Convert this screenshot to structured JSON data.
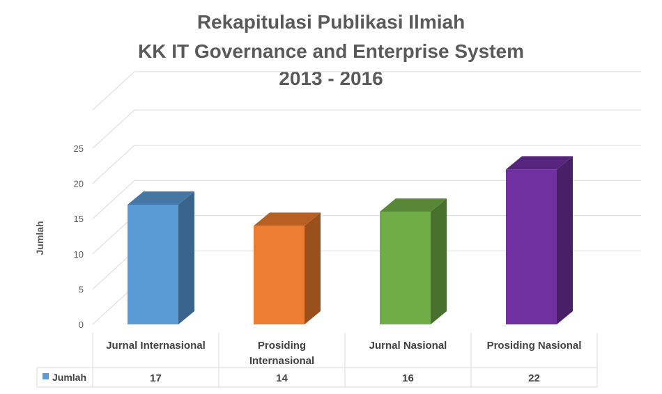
{
  "chart_data": {
    "type": "bar",
    "title_lines": [
      "Rekapitulasi Publikasi Ilmiah",
      "KK IT Governance and Enterprise System",
      "2013 - 2016"
    ],
    "ylabel": "Jumlah",
    "xlabel": "",
    "ylim": [
      0,
      25
    ],
    "yticks": [
      0,
      5,
      10,
      15,
      20,
      25
    ],
    "categories": [
      [
        "Jurnal Internasional"
      ],
      [
        "Prosiding",
        "Internasional"
      ],
      [
        "Jurnal Nasional"
      ],
      [
        "Prosiding Nasional"
      ]
    ],
    "series": [
      {
        "name": "Jumlah",
        "values": [
          17,
          14,
          16,
          22
        ]
      }
    ],
    "bar_colors": [
      "#5B9BD5",
      "#ED7D31",
      "#70AD47",
      "#7030A0"
    ],
    "side_colors": [
      "#3A648C",
      "#9A4F1D",
      "#48712D",
      "#491F68"
    ],
    "top_colors": [
      "#4677A4",
      "#B85F24",
      "#578737",
      "#56267D"
    ],
    "legend_placement": "data-table-bottom",
    "grid": true
  }
}
